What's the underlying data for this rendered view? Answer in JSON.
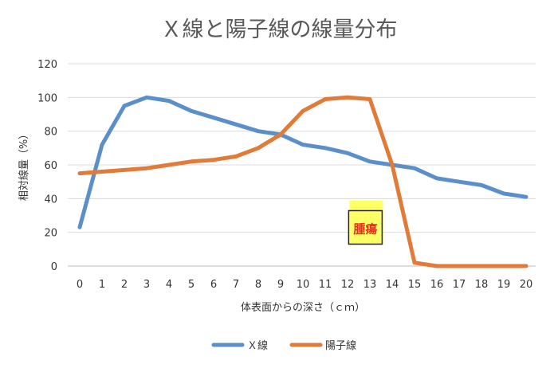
{
  "chart_data": {
    "type": "line",
    "title": "Ｘ線と陽子線の線量分布",
    "xlabel": "体表面からの深さ（ｃｍ）",
    "ylabel": "相対線量（%）",
    "x": [
      0,
      1,
      2,
      3,
      4,
      5,
      6,
      7,
      8,
      9,
      10,
      11,
      12,
      13,
      14,
      15,
      16,
      17,
      18,
      19,
      20
    ],
    "ylim": [
      0,
      120
    ],
    "yticks": [
      0,
      20,
      40,
      60,
      80,
      100,
      120
    ],
    "grid": true,
    "legend": "bottom",
    "series": [
      {
        "name": "Ｘ線",
        "color": "#5b8fc9",
        "values": [
          23,
          72,
          95,
          100,
          98,
          92,
          88,
          84,
          80,
          78,
          72,
          70,
          67,
          62,
          60,
          58,
          52,
          50,
          48,
          43,
          41
        ]
      },
      {
        "name": "陽子線",
        "color": "#e07b39",
        "values": [
          55,
          56,
          57,
          58,
          60,
          62,
          63,
          65,
          70,
          78,
          92,
          99,
          100,
          99,
          60,
          2,
          0,
          0,
          0,
          0,
          0
        ]
      }
    ],
    "annotations": [
      {
        "text": "腫瘍",
        "x": 12.8,
        "y": 13,
        "background": "#ffff66",
        "color": "#e0301e"
      }
    ]
  }
}
